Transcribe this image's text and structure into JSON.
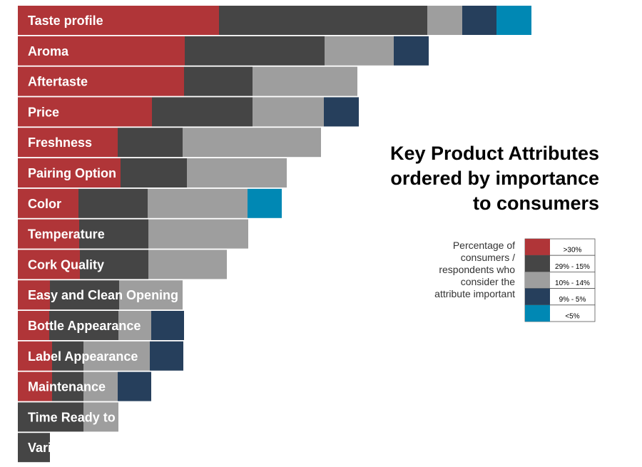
{
  "chart_data": {
    "type": "bar",
    "orientation": "horizontal",
    "stacked": true,
    "title_lines": [
      "Key Product Attributes",
      "ordered by importance",
      "to consumers"
    ],
    "categories": [
      "Taste profile",
      "Aroma",
      "Aftertaste",
      "Price",
      "Freshness",
      "Pairing Option",
      "Color",
      "Temperature",
      "Cork Quality",
      "Easy and Clean Opening",
      "Bottle Appearance",
      "Label Appearance",
      "Maintenance",
      "Time Ready to Drink",
      "Variant Recognition"
    ],
    "series": [
      {
        "name": ">30%",
        "color": "#b03538",
        "values": [
          282,
          234,
          233,
          188,
          140,
          144,
          85,
          86,
          87,
          45,
          44,
          48,
          48,
          0,
          0
        ]
      },
      {
        "name": "29% - 15%",
        "color": "#454545",
        "values": [
          292,
          196,
          96,
          141,
          91,
          93,
          97,
          97,
          96,
          97,
          97,
          44,
          44,
          92,
          45
        ]
      },
      {
        "name": "10% - 14%",
        "color": "#9e9e9e",
        "values": [
          49,
          97,
          147,
          100,
          194,
          140,
          140,
          140,
          110,
          89,
          46,
          93,
          48,
          49,
          0
        ]
      },
      {
        "name": "9% - 5%",
        "color": "#263f5c",
        "values": [
          48,
          49,
          0,
          49,
          0,
          0,
          0,
          0,
          0,
          0,
          46,
          47,
          47,
          0,
          0
        ]
      },
      {
        "name": "<5%",
        "color": "#0088b4",
        "values": [
          49,
          0,
          0,
          0,
          0,
          0,
          48,
          0,
          0,
          0,
          0,
          0,
          0,
          0,
          0
        ]
      }
    ],
    "legend": {
      "position": "right",
      "description_lines": [
        "Percentage of",
        "consumers /",
        "respondents who",
        "consider the",
        "attribute important"
      ]
    },
    "grid": false
  }
}
